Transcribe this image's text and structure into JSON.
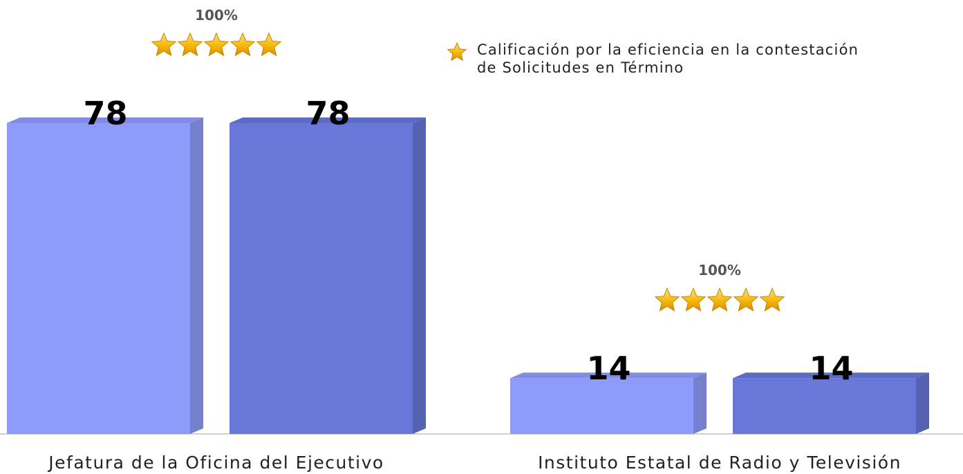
{
  "chart_data": {
    "type": "bar",
    "categories": [
      "Jefatura de la Oficina  del Ejecutivo",
      "Instituto  Estatal de Radio y Televisión"
    ],
    "series": [
      {
        "color": "#8f9bfb",
        "values": [
          78,
          14
        ]
      },
      {
        "color": "#6877d8",
        "values": [
          78,
          14
        ]
      }
    ],
    "ratings": [
      "100%",
      "100%"
    ],
    "legend_note": [
      "Calificación por la eficiencia en la contestación",
      "de Solicitudes en Término"
    ]
  }
}
